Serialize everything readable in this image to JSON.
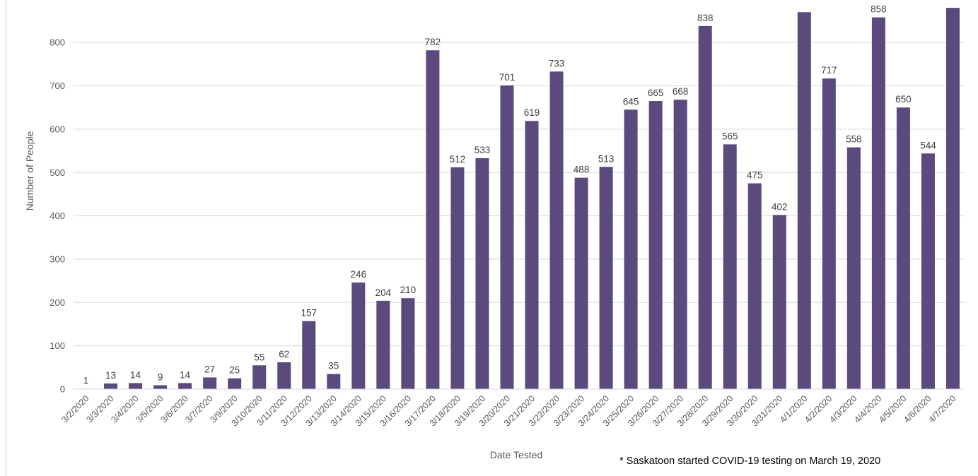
{
  "chart_data": {
    "type": "bar",
    "title": "",
    "xlabel": "Date Tested",
    "ylabel": "Number of People",
    "ylim": [
      0,
      900
    ],
    "yticks": [
      0,
      100,
      200,
      300,
      400,
      500,
      600,
      700,
      800
    ],
    "grid": true,
    "bar_color": "#5b4a7d",
    "note": "* Saskatoon started COVID-19 testing on March 19, 2020",
    "categories": [
      "3/2/2020",
      "3/3/2020",
      "3/4/2020",
      "3/5/2020",
      "3/6/2020",
      "3/7/2020",
      "3/9/2020",
      "3/10/2020",
      "3/11/2020",
      "3/12/2020",
      "3/13/2020",
      "3/14/2020",
      "3/15/2020",
      "3/16/2020",
      "3/17/2020",
      "3/18/2020",
      "3/19/2020",
      "3/20/2020",
      "3/21/2020",
      "3/22/2020",
      "3/23/2020",
      "3/24/2020",
      "3/25/2020",
      "3/26/2020",
      "3/27/2020",
      "3/28/2020",
      "3/29/2020",
      "3/30/2020",
      "3/31/2020",
      "4/1/2020",
      "4/2/2020",
      "4/3/2020",
      "4/4/2020",
      "4/5/2020",
      "4/6/2020",
      "4/7/2020"
    ],
    "values": [
      1,
      13,
      14,
      9,
      14,
      27,
      25,
      55,
      62,
      157,
      35,
      246,
      204,
      210,
      782,
      512,
      533,
      701,
      619,
      733,
      488,
      513,
      645,
      665,
      668,
      838,
      565,
      475,
      402,
      870,
      717,
      558,
      858,
      650,
      544,
      880
    ],
    "data_labels": [
      "1",
      "13",
      "14",
      "9",
      "14",
      "27",
      "25",
      "55",
      "62",
      "157",
      "35",
      "246",
      "204",
      "210",
      "782",
      "512",
      "533",
      "701",
      "619",
      "733",
      "488",
      "513",
      "645",
      "665",
      "668",
      "838",
      "565",
      "475",
      "402",
      "",
      "717",
      "558",
      "858",
      "650",
      "544",
      ""
    ]
  }
}
